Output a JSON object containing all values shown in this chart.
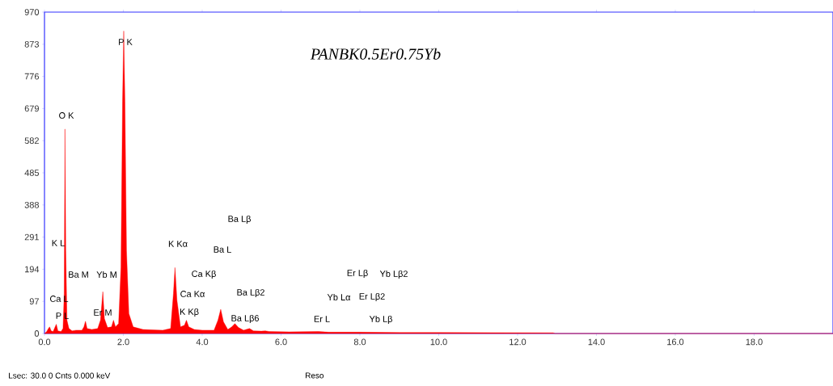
{
  "chart_data": {
    "type": "area",
    "title": "PANBK0.5Er0.75Yb",
    "x": [
      0,
      0.05,
      0.1,
      0.13,
      0.17,
      0.22,
      0.27,
      0.3,
      0.34,
      0.42,
      0.47,
      0.5,
      0.52,
      0.54,
      0.57,
      0.62,
      0.7,
      0.8,
      0.95,
      1.0,
      1.04,
      1.08,
      1.2,
      1.35,
      1.42,
      1.48,
      1.52,
      1.6,
      1.7,
      1.75,
      1.8,
      1.88,
      1.94,
      1.98,
      2.01,
      2.04,
      2.08,
      2.14,
      2.25,
      2.5,
      3.0,
      3.2,
      3.27,
      3.31,
      3.36,
      3.45,
      3.55,
      3.6,
      3.66,
      3.8,
      4.0,
      4.3,
      4.4,
      4.47,
      4.54,
      4.65,
      4.75,
      4.83,
      4.92,
      5.05,
      5.2,
      5.3,
      5.5,
      5.6,
      5.7,
      6.2,
      6.95,
      7.2,
      8.0,
      9.0,
      10.0,
      12.9,
      12.95,
      20
    ],
    "values": [
      0,
      5,
      15,
      20,
      8,
      6,
      20,
      28,
      8,
      6,
      15,
      120,
      617,
      250,
      40,
      15,
      8,
      10,
      10,
      20,
      37,
      15,
      12,
      15,
      40,
      126,
      45,
      18,
      20,
      40,
      20,
      30,
      200,
      700,
      913,
      700,
      250,
      60,
      20,
      12,
      10,
      15,
      120,
      199,
      100,
      20,
      25,
      40,
      20,
      12,
      10,
      10,
      40,
      73,
      35,
      12,
      20,
      30,
      18,
      10,
      15,
      8,
      7,
      8,
      6,
      5,
      6,
      4,
      4,
      3,
      3,
      2,
      0,
      0
    ],
    "color": "#ff0000",
    "xlim": [
      0,
      20
    ],
    "ylim": [
      0,
      970
    ],
    "xticks": [
      {
        "value": 0,
        "label": "0.0"
      },
      {
        "value": 2,
        "label": "2.0"
      },
      {
        "value": 4,
        "label": "4.0"
      },
      {
        "value": 6,
        "label": "6.0"
      },
      {
        "value": 8,
        "label": "8.0"
      },
      {
        "value": 10,
        "label": "10.0"
      },
      {
        "value": 12,
        "label": "12.0"
      },
      {
        "value": 14,
        "label": "14.0"
      },
      {
        "value": 16,
        "label": "16.0"
      },
      {
        "value": 18,
        "label": "18.0"
      }
    ],
    "yticks": [
      0,
      97,
      194,
      291,
      388,
      485,
      582,
      679,
      776,
      873,
      970
    ],
    "annotations": [
      "P  K",
      "O  K",
      "K  L",
      "Ba M",
      "Yb M",
      "Ca L",
      "P  L",
      "Er M",
      "K  Kα",
      "Ba L",
      "Ba Lβ",
      "Ca Kβ",
      "Ca Kα",
      "K  Kβ",
      "Ba Lβ2",
      "Ba Lβ6",
      "Er Lβ",
      "Yb Lβ2",
      "Yb Lα",
      "Er Lβ2",
      "Er L",
      "Yb Lβ",
      "Lsec: 30.0 0 Cnts  0.000 keV",
      "Reso"
    ]
  }
}
